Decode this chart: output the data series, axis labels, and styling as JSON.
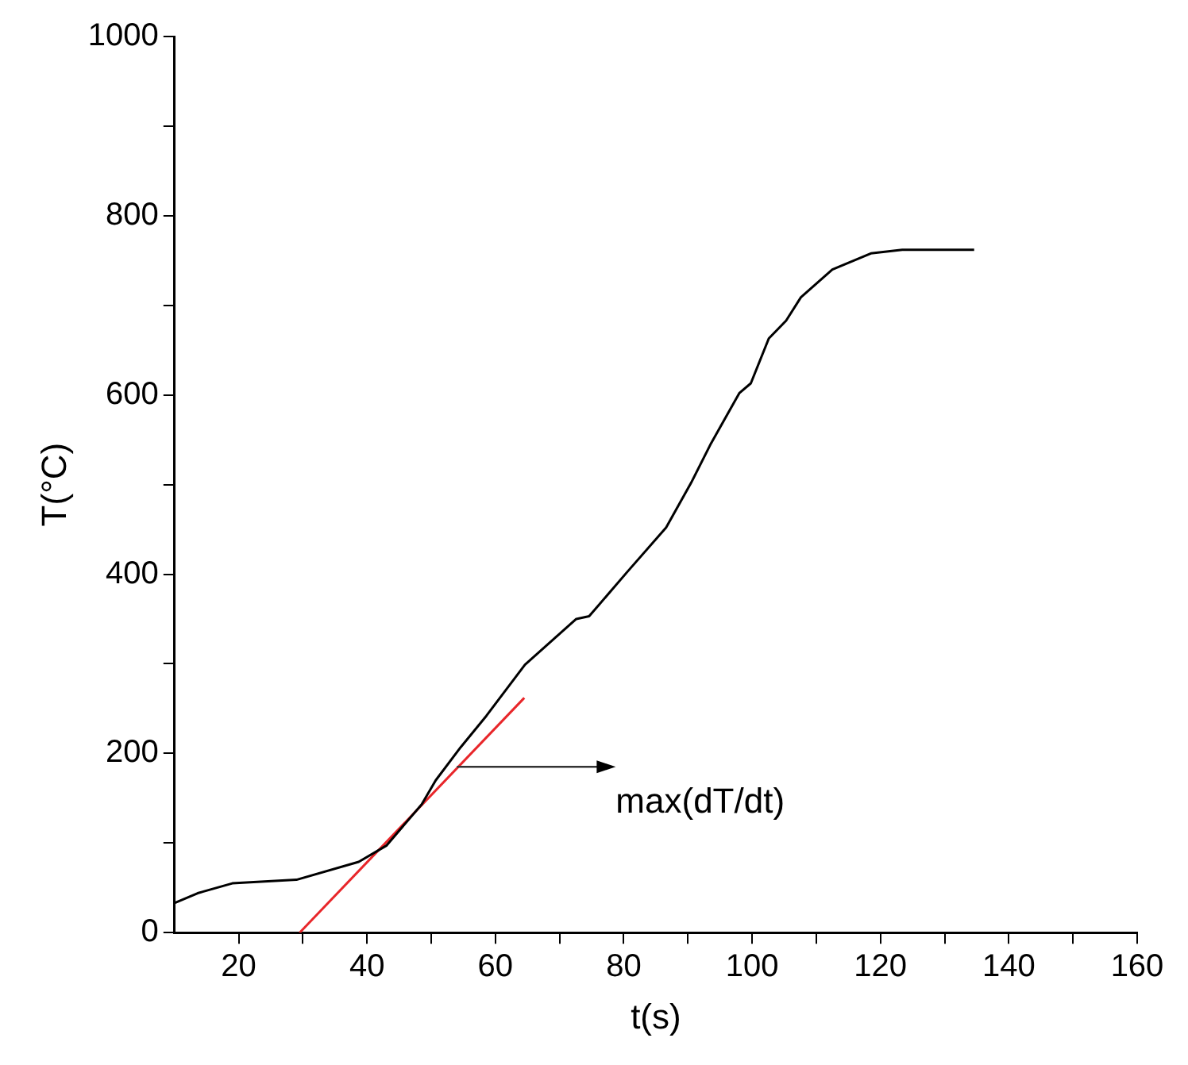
{
  "chart_data": {
    "type": "line",
    "xlabel": "t(s)",
    "ylabel": "T(°C)",
    "xlim": [
      10,
      160
    ],
    "ylim": [
      0,
      1000
    ],
    "xticks": [
      20,
      40,
      60,
      80,
      100,
      120,
      140,
      160,
      {
        "value": 30,
        "label": null
      },
      {
        "value": 50,
        "label": null
      },
      {
        "value": 70,
        "label": null
      },
      {
        "value": 90,
        "label": null
      },
      {
        "value": 110,
        "label": null
      },
      {
        "value": 130,
        "label": null
      },
      {
        "value": 150,
        "label": null
      }
    ],
    "yticks": [
      0,
      200,
      400,
      600,
      800,
      1000,
      {
        "value": 100,
        "label": null
      },
      {
        "value": 300,
        "label": null
      },
      {
        "value": 500,
        "label": null
      },
      {
        "value": 700,
        "label": null
      },
      {
        "value": 900,
        "label": null
      }
    ],
    "grid": false,
    "legend": false,
    "marker": "none",
    "line_style": "solid",
    "series": [
      {
        "type": "line",
        "color": "#000000",
        "x": [
          10,
          13.6,
          19,
          29,
          38.7,
          43,
          48.5,
          50.7,
          54.6,
          58.6,
          64.6,
          72.6,
          74.6,
          80.6,
          86.6,
          90.5,
          93.6,
          98,
          99.8,
          102.6,
          105.3,
          107.6,
          112.5,
          118.5,
          123.4,
          134.6
        ],
        "values": [
          33,
          44,
          55,
          59,
          79,
          97,
          143,
          170,
          207,
          242,
          299,
          350,
          353,
          403,
          452,
          502,
          546,
          602,
          613,
          663,
          683,
          709,
          740,
          758,
          762,
          762
        ]
      },
      {
        "type": "line",
        "color": "#e8262a",
        "x": [
          29.5,
          64.5
        ],
        "values": [
          0,
          262
        ]
      }
    ],
    "annotations": [
      {
        "text": "max(dT/dt)",
        "x": 54,
        "y": 185
      }
    ]
  }
}
